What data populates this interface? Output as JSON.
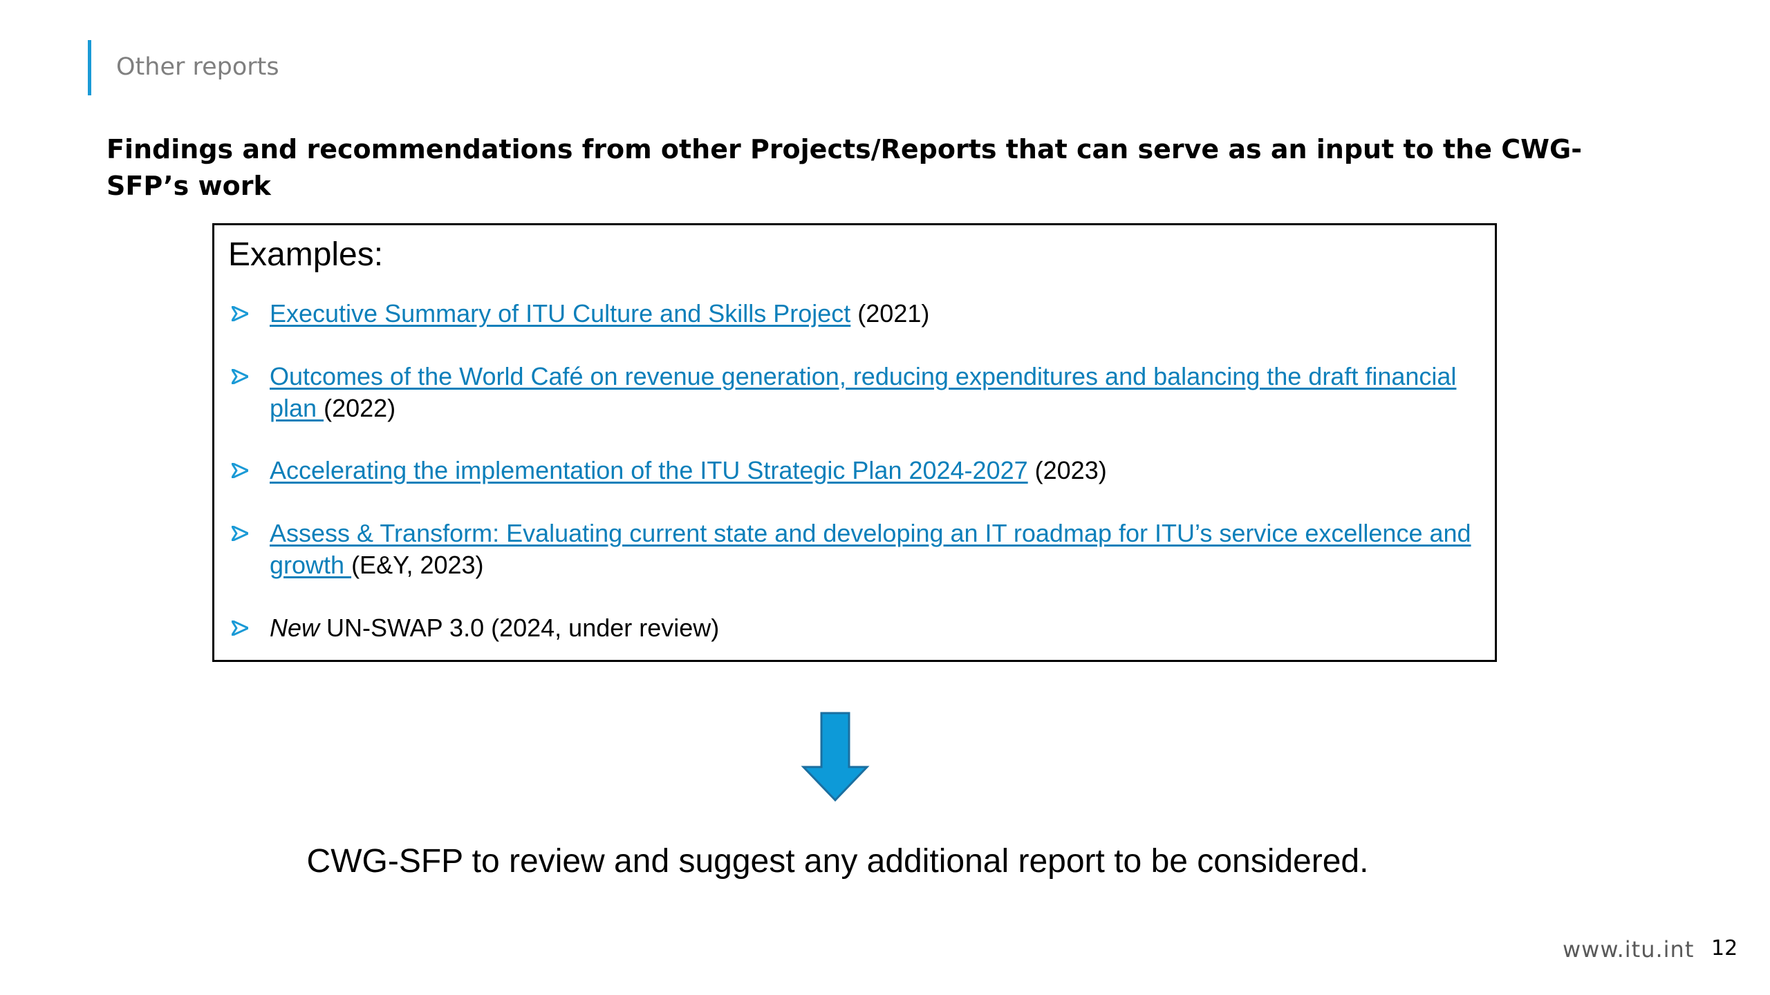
{
  "section": {
    "label": "Other reports"
  },
  "title": "Findings and recommendations from other Projects/Reports that can serve as an input to the CWG-SFP’s work",
  "examples": {
    "heading": "Examples:",
    "items": [
      {
        "link": "Executive Summary of ITU Culture and Skills Project",
        "suffix": " (2021)"
      },
      {
        "link": "Outcomes of the World Café on revenue generation, reducing expenditures and balancing the draft financial plan ",
        "suffix": "(2022)"
      },
      {
        "link": "Accelerating the implementation of the ITU Strategic Plan 2024-2027",
        "suffix": " (2023)"
      },
      {
        "link": "Assess & Transform: Evaluating current state and developing an IT roadmap for ITU’s service excellence and growth ",
        "suffix": "(E&Y, 2023)"
      },
      {
        "emphasis": "New",
        "suffix": " UN-SWAP 3.0 (2024, under review)"
      }
    ]
  },
  "conclusion": "CWG-SFP to review and suggest any additional report to be considered.",
  "footer": {
    "url": "www.itu.int",
    "page_number": "12"
  },
  "colors": {
    "accent": "#1a9ad6",
    "link": "#0c7fba"
  },
  "icons": {
    "bullet": "arrowhead-bullet-icon",
    "flow": "down-arrow-icon"
  }
}
